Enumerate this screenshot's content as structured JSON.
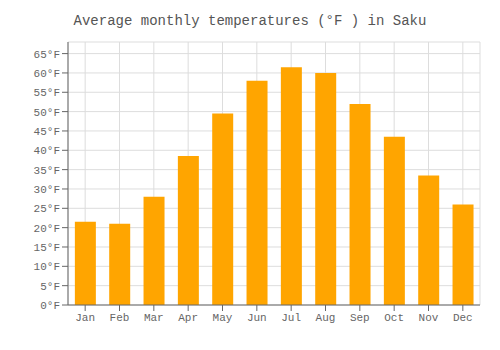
{
  "chart_data": {
    "type": "bar",
    "title": "Average monthly temperatures (°F ) in Saku",
    "categories": [
      "Jan",
      "Feb",
      "Mar",
      "Apr",
      "May",
      "Jun",
      "Jul",
      "Aug",
      "Sep",
      "Oct",
      "Nov",
      "Dec"
    ],
    "values": [
      21.5,
      21.0,
      28.0,
      38.5,
      49.5,
      58.0,
      61.5,
      60.0,
      52.0,
      43.5,
      33.5,
      26.0
    ],
    "color": "#FFA500",
    "ylim": [
      0,
      68
    ],
    "yticks": [
      {
        "value": 0,
        "label": "0°F"
      },
      {
        "value": 5,
        "label": "5°F"
      },
      {
        "value": 10,
        "label": "10°F"
      },
      {
        "value": 15,
        "label": "15°F"
      },
      {
        "value": 20,
        "label": "20°F"
      },
      {
        "value": 25,
        "label": "25°F"
      },
      {
        "value": 30,
        "label": "30°F"
      },
      {
        "value": 35,
        "label": "35°F"
      },
      {
        "value": 40,
        "label": "40°F"
      },
      {
        "value": 45,
        "label": "45°F"
      },
      {
        "value": 50,
        "label": "50°F"
      },
      {
        "value": 55,
        "label": "55°F"
      },
      {
        "value": 60,
        "label": "60°F"
      },
      {
        "value": 65,
        "label": "65°F"
      }
    ],
    "grid": true
  }
}
